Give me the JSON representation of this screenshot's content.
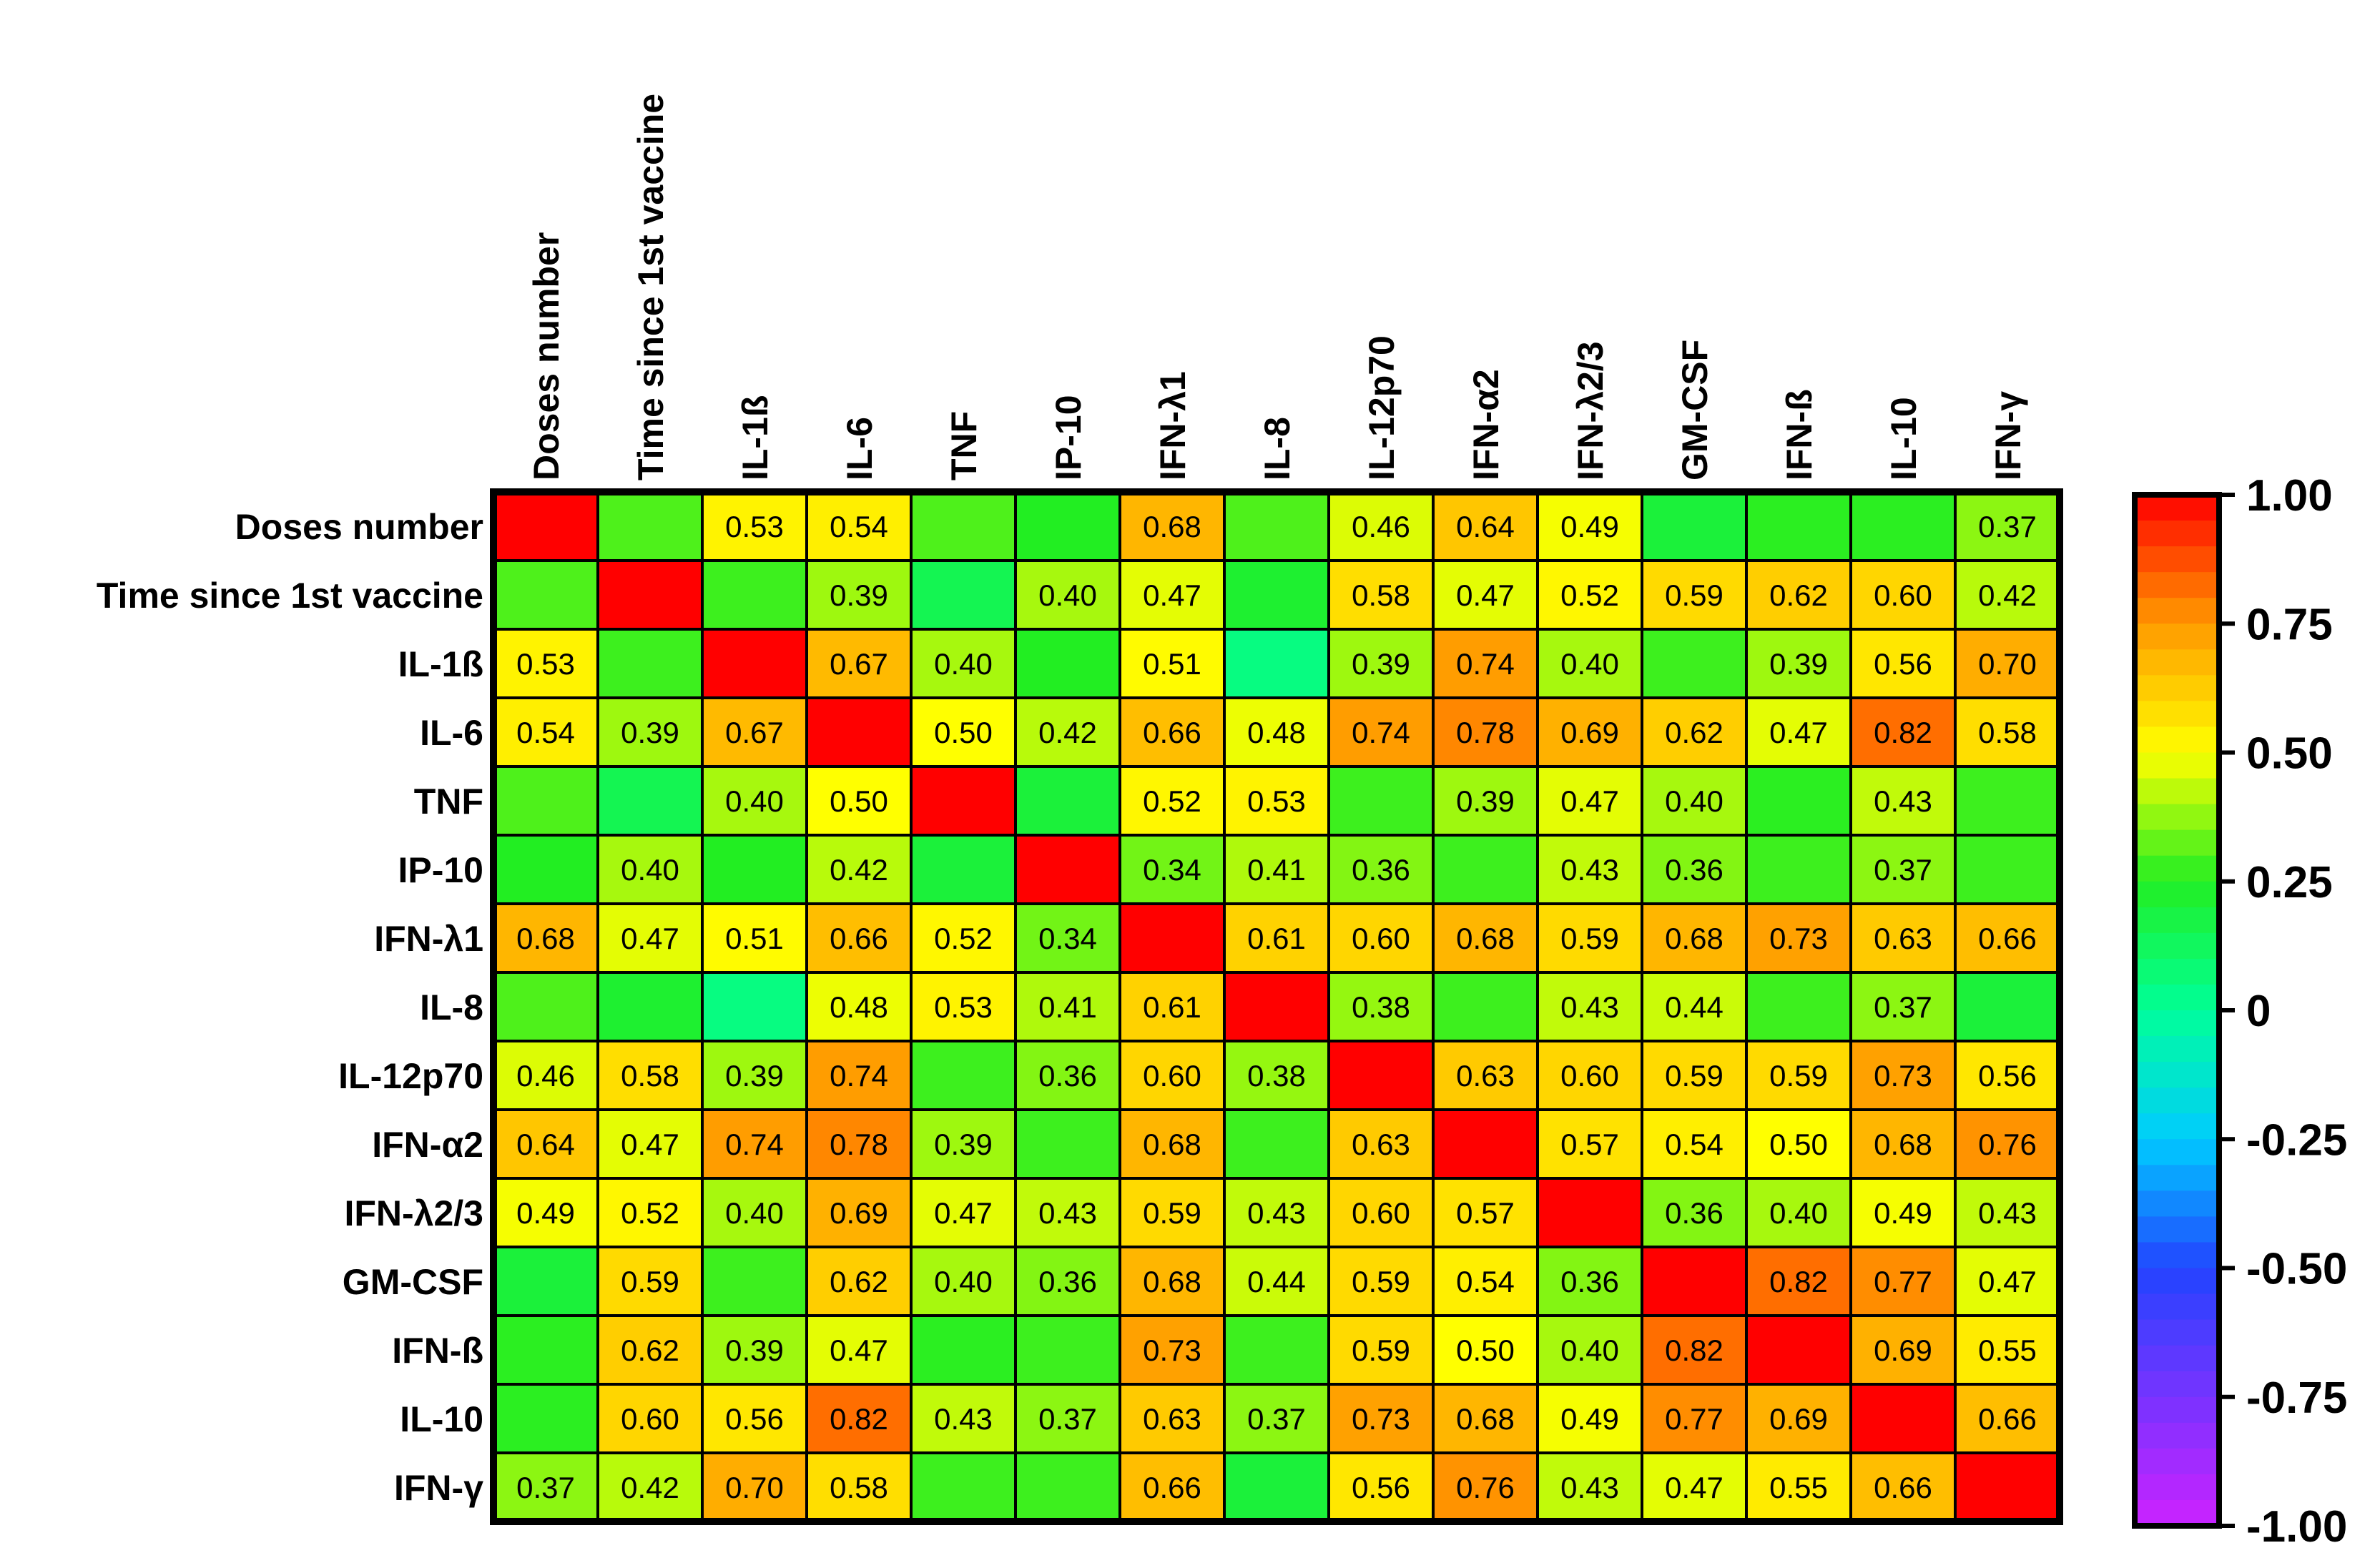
{
  "chart_data": {
    "type": "heatmap",
    "title": "",
    "variables": [
      "Doses number",
      "Time since 1st vaccine",
      "IL-1ß",
      "IL-6",
      "TNF",
      "IP-10",
      "IFN-λ1",
      "IL-8",
      "IL-12p70",
      "IFN-α2",
      "IFN-λ2/3",
      "GM-CSF",
      "IFN-ß",
      "IL-10",
      "IFN-γ"
    ],
    "cells": [
      [
        {
          "v": 1.0,
          "label": ""
        },
        {
          "v": 0.3,
          "label": ""
        },
        {
          "v": 0.53,
          "label": "0.53"
        },
        {
          "v": 0.54,
          "label": "0.54"
        },
        {
          "v": 0.3,
          "label": ""
        },
        {
          "v": 0.25,
          "label": ""
        },
        {
          "v": 0.68,
          "label": "0.68"
        },
        {
          "v": 0.3,
          "label": ""
        },
        {
          "v": 0.46,
          "label": "0.46"
        },
        {
          "v": 0.64,
          "label": "0.64"
        },
        {
          "v": 0.49,
          "label": "0.49"
        },
        {
          "v": 0.2,
          "label": ""
        },
        {
          "v": 0.26,
          "label": ""
        },
        {
          "v": 0.26,
          "label": ""
        },
        {
          "v": 0.37,
          "label": "0.37"
        }
      ],
      [
        {
          "v": 0.3,
          "label": ""
        },
        {
          "v": 1.0,
          "label": ""
        },
        {
          "v": 0.28,
          "label": ""
        },
        {
          "v": 0.39,
          "label": "0.39"
        },
        {
          "v": 0.15,
          "label": ""
        },
        {
          "v": 0.4,
          "label": "0.40"
        },
        {
          "v": 0.47,
          "label": "0.47"
        },
        {
          "v": 0.22,
          "label": ""
        },
        {
          "v": 0.58,
          "label": "0.58"
        },
        {
          "v": 0.47,
          "label": "0.47"
        },
        {
          "v": 0.52,
          "label": "0.52"
        },
        {
          "v": 0.59,
          "label": "0.59"
        },
        {
          "v": 0.62,
          "label": "0.62"
        },
        {
          "v": 0.6,
          "label": "0.60"
        },
        {
          "v": 0.42,
          "label": "0.42"
        }
      ],
      [
        {
          "v": 0.53,
          "label": "0.53"
        },
        {
          "v": 0.28,
          "label": ""
        },
        {
          "v": 1.0,
          "label": ""
        },
        {
          "v": 0.67,
          "label": "0.67"
        },
        {
          "v": 0.4,
          "label": "0.40"
        },
        {
          "v": 0.25,
          "label": ""
        },
        {
          "v": 0.51,
          "label": "0.51"
        },
        {
          "v": 0.05,
          "label": ""
        },
        {
          "v": 0.39,
          "label": "0.39"
        },
        {
          "v": 0.74,
          "label": "0.74"
        },
        {
          "v": 0.4,
          "label": "0.40"
        },
        {
          "v": 0.28,
          "label": ""
        },
        {
          "v": 0.39,
          "label": "0.39"
        },
        {
          "v": 0.56,
          "label": "0.56"
        },
        {
          "v": 0.7,
          "label": "0.70"
        }
      ],
      [
        {
          "v": 0.54,
          "label": "0.54"
        },
        {
          "v": 0.39,
          "label": "0.39"
        },
        {
          "v": 0.67,
          "label": "0.67"
        },
        {
          "v": 1.0,
          "label": ""
        },
        {
          "v": 0.5,
          "label": "0.50"
        },
        {
          "v": 0.42,
          "label": "0.42"
        },
        {
          "v": 0.66,
          "label": "0.66"
        },
        {
          "v": 0.48,
          "label": "0.48"
        },
        {
          "v": 0.74,
          "label": "0.74"
        },
        {
          "v": 0.78,
          "label": "0.78"
        },
        {
          "v": 0.69,
          "label": "0.69"
        },
        {
          "v": 0.62,
          "label": "0.62"
        },
        {
          "v": 0.47,
          "label": "0.47"
        },
        {
          "v": 0.82,
          "label": "0.82"
        },
        {
          "v": 0.58,
          "label": "0.58"
        }
      ],
      [
        {
          "v": 0.3,
          "label": ""
        },
        {
          "v": 0.15,
          "label": ""
        },
        {
          "v": 0.4,
          "label": "0.40"
        },
        {
          "v": 0.5,
          "label": "0.50"
        },
        {
          "v": 1.0,
          "label": ""
        },
        {
          "v": 0.2,
          "label": ""
        },
        {
          "v": 0.52,
          "label": "0.52"
        },
        {
          "v": 0.53,
          "label": "0.53"
        },
        {
          "v": 0.28,
          "label": ""
        },
        {
          "v": 0.39,
          "label": "0.39"
        },
        {
          "v": 0.47,
          "label": "0.47"
        },
        {
          "v": 0.4,
          "label": "0.40"
        },
        {
          "v": 0.26,
          "label": ""
        },
        {
          "v": 0.43,
          "label": "0.43"
        },
        {
          "v": 0.28,
          "label": ""
        }
      ],
      [
        {
          "v": 0.25,
          "label": ""
        },
        {
          "v": 0.4,
          "label": "0.40"
        },
        {
          "v": 0.25,
          "label": ""
        },
        {
          "v": 0.42,
          "label": "0.42"
        },
        {
          "v": 0.2,
          "label": ""
        },
        {
          "v": 1.0,
          "label": ""
        },
        {
          "v": 0.34,
          "label": "0.34"
        },
        {
          "v": 0.41,
          "label": "0.41"
        },
        {
          "v": 0.36,
          "label": "0.36"
        },
        {
          "v": 0.28,
          "label": ""
        },
        {
          "v": 0.43,
          "label": "0.43"
        },
        {
          "v": 0.36,
          "label": "0.36"
        },
        {
          "v": 0.28,
          "label": ""
        },
        {
          "v": 0.37,
          "label": "0.37"
        },
        {
          "v": 0.28,
          "label": ""
        }
      ],
      [
        {
          "v": 0.68,
          "label": "0.68"
        },
        {
          "v": 0.47,
          "label": "0.47"
        },
        {
          "v": 0.51,
          "label": "0.51"
        },
        {
          "v": 0.66,
          "label": "0.66"
        },
        {
          "v": 0.52,
          "label": "0.52"
        },
        {
          "v": 0.34,
          "label": "0.34"
        },
        {
          "v": 1.0,
          "label": ""
        },
        {
          "v": 0.61,
          "label": "0.61"
        },
        {
          "v": 0.6,
          "label": "0.60"
        },
        {
          "v": 0.68,
          "label": "0.68"
        },
        {
          "v": 0.59,
          "label": "0.59"
        },
        {
          "v": 0.68,
          "label": "0.68"
        },
        {
          "v": 0.73,
          "label": "0.73"
        },
        {
          "v": 0.63,
          "label": "0.63"
        },
        {
          "v": 0.66,
          "label": "0.66"
        }
      ],
      [
        {
          "v": 0.3,
          "label": ""
        },
        {
          "v": 0.22,
          "label": ""
        },
        {
          "v": 0.05,
          "label": ""
        },
        {
          "v": 0.48,
          "label": "0.48"
        },
        {
          "v": 0.53,
          "label": "0.53"
        },
        {
          "v": 0.41,
          "label": "0.41"
        },
        {
          "v": 0.61,
          "label": "0.61"
        },
        {
          "v": 1.0,
          "label": ""
        },
        {
          "v": 0.38,
          "label": "0.38"
        },
        {
          "v": 0.28,
          "label": ""
        },
        {
          "v": 0.43,
          "label": "0.43"
        },
        {
          "v": 0.44,
          "label": "0.44"
        },
        {
          "v": 0.28,
          "label": ""
        },
        {
          "v": 0.37,
          "label": "0.37"
        },
        {
          "v": 0.2,
          "label": ""
        }
      ],
      [
        {
          "v": 0.46,
          "label": "0.46"
        },
        {
          "v": 0.58,
          "label": "0.58"
        },
        {
          "v": 0.39,
          "label": "0.39"
        },
        {
          "v": 0.74,
          "label": "0.74"
        },
        {
          "v": 0.28,
          "label": ""
        },
        {
          "v": 0.36,
          "label": "0.36"
        },
        {
          "v": 0.6,
          "label": "0.60"
        },
        {
          "v": 0.38,
          "label": "0.38"
        },
        {
          "v": 1.0,
          "label": ""
        },
        {
          "v": 0.63,
          "label": "0.63"
        },
        {
          "v": 0.6,
          "label": "0.60"
        },
        {
          "v": 0.59,
          "label": "0.59"
        },
        {
          "v": 0.59,
          "label": "0.59"
        },
        {
          "v": 0.73,
          "label": "0.73"
        },
        {
          "v": 0.56,
          "label": "0.56"
        }
      ],
      [
        {
          "v": 0.64,
          "label": "0.64"
        },
        {
          "v": 0.47,
          "label": "0.47"
        },
        {
          "v": 0.74,
          "label": "0.74"
        },
        {
          "v": 0.78,
          "label": "0.78"
        },
        {
          "v": 0.39,
          "label": "0.39"
        },
        {
          "v": 0.28,
          "label": ""
        },
        {
          "v": 0.68,
          "label": "0.68"
        },
        {
          "v": 0.28,
          "label": ""
        },
        {
          "v": 0.63,
          "label": "0.63"
        },
        {
          "v": 1.0,
          "label": ""
        },
        {
          "v": 0.57,
          "label": "0.57"
        },
        {
          "v": 0.54,
          "label": "0.54"
        },
        {
          "v": 0.5,
          "label": "0.50"
        },
        {
          "v": 0.68,
          "label": "0.68"
        },
        {
          "v": 0.76,
          "label": "0.76"
        }
      ],
      [
        {
          "v": 0.49,
          "label": "0.49"
        },
        {
          "v": 0.52,
          "label": "0.52"
        },
        {
          "v": 0.4,
          "label": "0.40"
        },
        {
          "v": 0.69,
          "label": "0.69"
        },
        {
          "v": 0.47,
          "label": "0.47"
        },
        {
          "v": 0.43,
          "label": "0.43"
        },
        {
          "v": 0.59,
          "label": "0.59"
        },
        {
          "v": 0.43,
          "label": "0.43"
        },
        {
          "v": 0.6,
          "label": "0.60"
        },
        {
          "v": 0.57,
          "label": "0.57"
        },
        {
          "v": 1.0,
          "label": ""
        },
        {
          "v": 0.36,
          "label": "0.36"
        },
        {
          "v": 0.4,
          "label": "0.40"
        },
        {
          "v": 0.49,
          "label": "0.49"
        },
        {
          "v": 0.43,
          "label": "0.43"
        }
      ],
      [
        {
          "v": 0.2,
          "label": ""
        },
        {
          "v": 0.59,
          "label": "0.59"
        },
        {
          "v": 0.28,
          "label": ""
        },
        {
          "v": 0.62,
          "label": "0.62"
        },
        {
          "v": 0.4,
          "label": "0.40"
        },
        {
          "v": 0.36,
          "label": "0.36"
        },
        {
          "v": 0.68,
          "label": "0.68"
        },
        {
          "v": 0.44,
          "label": "0.44"
        },
        {
          "v": 0.59,
          "label": "0.59"
        },
        {
          "v": 0.54,
          "label": "0.54"
        },
        {
          "v": 0.36,
          "label": "0.36"
        },
        {
          "v": 1.0,
          "label": ""
        },
        {
          "v": 0.82,
          "label": "0.82"
        },
        {
          "v": 0.77,
          "label": "0.77"
        },
        {
          "v": 0.47,
          "label": "0.47"
        }
      ],
      [
        {
          "v": 0.26,
          "label": ""
        },
        {
          "v": 0.62,
          "label": "0.62"
        },
        {
          "v": 0.39,
          "label": "0.39"
        },
        {
          "v": 0.47,
          "label": "0.47"
        },
        {
          "v": 0.26,
          "label": ""
        },
        {
          "v": 0.28,
          "label": ""
        },
        {
          "v": 0.73,
          "label": "0.73"
        },
        {
          "v": 0.28,
          "label": ""
        },
        {
          "v": 0.59,
          "label": "0.59"
        },
        {
          "v": 0.5,
          "label": "0.50"
        },
        {
          "v": 0.4,
          "label": "0.40"
        },
        {
          "v": 0.82,
          "label": "0.82"
        },
        {
          "v": 1.0,
          "label": ""
        },
        {
          "v": 0.69,
          "label": "0.69"
        },
        {
          "v": 0.55,
          "label": "0.55"
        }
      ],
      [
        {
          "v": 0.26,
          "label": ""
        },
        {
          "v": 0.6,
          "label": "0.60"
        },
        {
          "v": 0.56,
          "label": "0.56"
        },
        {
          "v": 0.82,
          "label": "0.82"
        },
        {
          "v": 0.43,
          "label": "0.43"
        },
        {
          "v": 0.37,
          "label": "0.37"
        },
        {
          "v": 0.63,
          "label": "0.63"
        },
        {
          "v": 0.37,
          "label": "0.37"
        },
        {
          "v": 0.73,
          "label": "0.73"
        },
        {
          "v": 0.68,
          "label": "0.68"
        },
        {
          "v": 0.49,
          "label": "0.49"
        },
        {
          "v": 0.77,
          "label": "0.77"
        },
        {
          "v": 0.69,
          "label": "0.69"
        },
        {
          "v": 1.0,
          "label": ""
        },
        {
          "v": 0.66,
          "label": "0.66"
        }
      ],
      [
        {
          "v": 0.37,
          "label": "0.37"
        },
        {
          "v": 0.42,
          "label": "0.42"
        },
        {
          "v": 0.7,
          "label": "0.70"
        },
        {
          "v": 0.58,
          "label": "0.58"
        },
        {
          "v": 0.28,
          "label": ""
        },
        {
          "v": 0.28,
          "label": ""
        },
        {
          "v": 0.66,
          "label": "0.66"
        },
        {
          "v": 0.2,
          "label": ""
        },
        {
          "v": 0.56,
          "label": "0.56"
        },
        {
          "v": 0.76,
          "label": "0.76"
        },
        {
          "v": 0.43,
          "label": "0.43"
        },
        {
          "v": 0.47,
          "label": "0.47"
        },
        {
          "v": 0.55,
          "label": "0.55"
        },
        {
          "v": 0.66,
          "label": "0.66"
        },
        {
          "v": 1.0,
          "label": ""
        }
      ]
    ],
    "colorbar": {
      "range": [
        -1.0,
        1.0
      ],
      "ticks": [
        {
          "value": 1.0,
          "label": "1.00"
        },
        {
          "value": 0.75,
          "label": "0.75"
        },
        {
          "value": 0.5,
          "label": "0.50"
        },
        {
          "value": 0.25,
          "label": "0.25"
        },
        {
          "value": 0.0,
          "label": "0"
        },
        {
          "value": -0.25,
          "label": "-0.25"
        },
        {
          "value": -0.5,
          "label": "-0.50"
        },
        {
          "value": -0.75,
          "label": "-0.75"
        },
        {
          "value": -1.0,
          "label": "-1.00"
        }
      ],
      "colors": [
        "#cc22ff",
        "#7733ff",
        "#2244ff",
        "#00ccff",
        "#00ff99",
        "#22ee22",
        "#ffff00",
        "#ff9900",
        "#ff0000"
      ]
    },
    "grid": true,
    "legend": "right"
  }
}
